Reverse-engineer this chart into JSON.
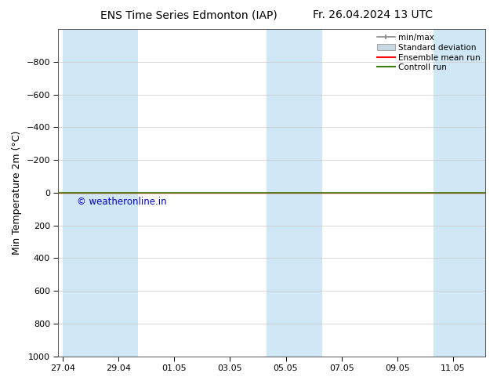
{
  "title_left": "ENS Time Series Edmonton (IAP)",
  "title_right": "Fr. 26.04.2024 13 UTC",
  "ylabel": "Min Temperature 2m (°C)",
  "ylim_top": -1000,
  "ylim_bottom": 1000,
  "yticks": [
    -800,
    -600,
    -400,
    -200,
    0,
    200,
    400,
    600,
    800,
    1000
  ],
  "xtick_labels": [
    "27.04",
    "29.04",
    "01.05",
    "03.05",
    "05.05",
    "07.05",
    "09.05",
    "11.05"
  ],
  "xtick_positions": [
    0,
    2,
    4,
    6,
    8,
    10,
    12,
    14
  ],
  "xlim": [
    -0.15,
    15.15
  ],
  "shaded_bands": [
    [
      0.0,
      2.0
    ],
    [
      2.0,
      2.7
    ],
    [
      7.3,
      8.0
    ],
    [
      8.0,
      9.3
    ],
    [
      13.3,
      15.15
    ]
  ],
  "flat_line_y": 0,
  "ensemble_mean_color": "#ff0000",
  "control_run_color": "#3a7d0a",
  "watermark_text": "© weatheronline.in",
  "watermark_color": "#0000cc",
  "legend_labels": [
    "min/max",
    "Standard deviation",
    "Ensemble mean run",
    "Controll run"
  ],
  "legend_colors": [
    "#888888",
    "#c0cfd8",
    "#ff0000",
    "#3a7d0a"
  ],
  "background_color": "#ffffff",
  "plot_bg_color": "#ffffff",
  "grid_color": "#c8c8c8",
  "spine_color": "#555555",
  "shade_color": "#d0e8f5",
  "title_fontsize": 10,
  "tick_fontsize": 8,
  "ylabel_fontsize": 9
}
